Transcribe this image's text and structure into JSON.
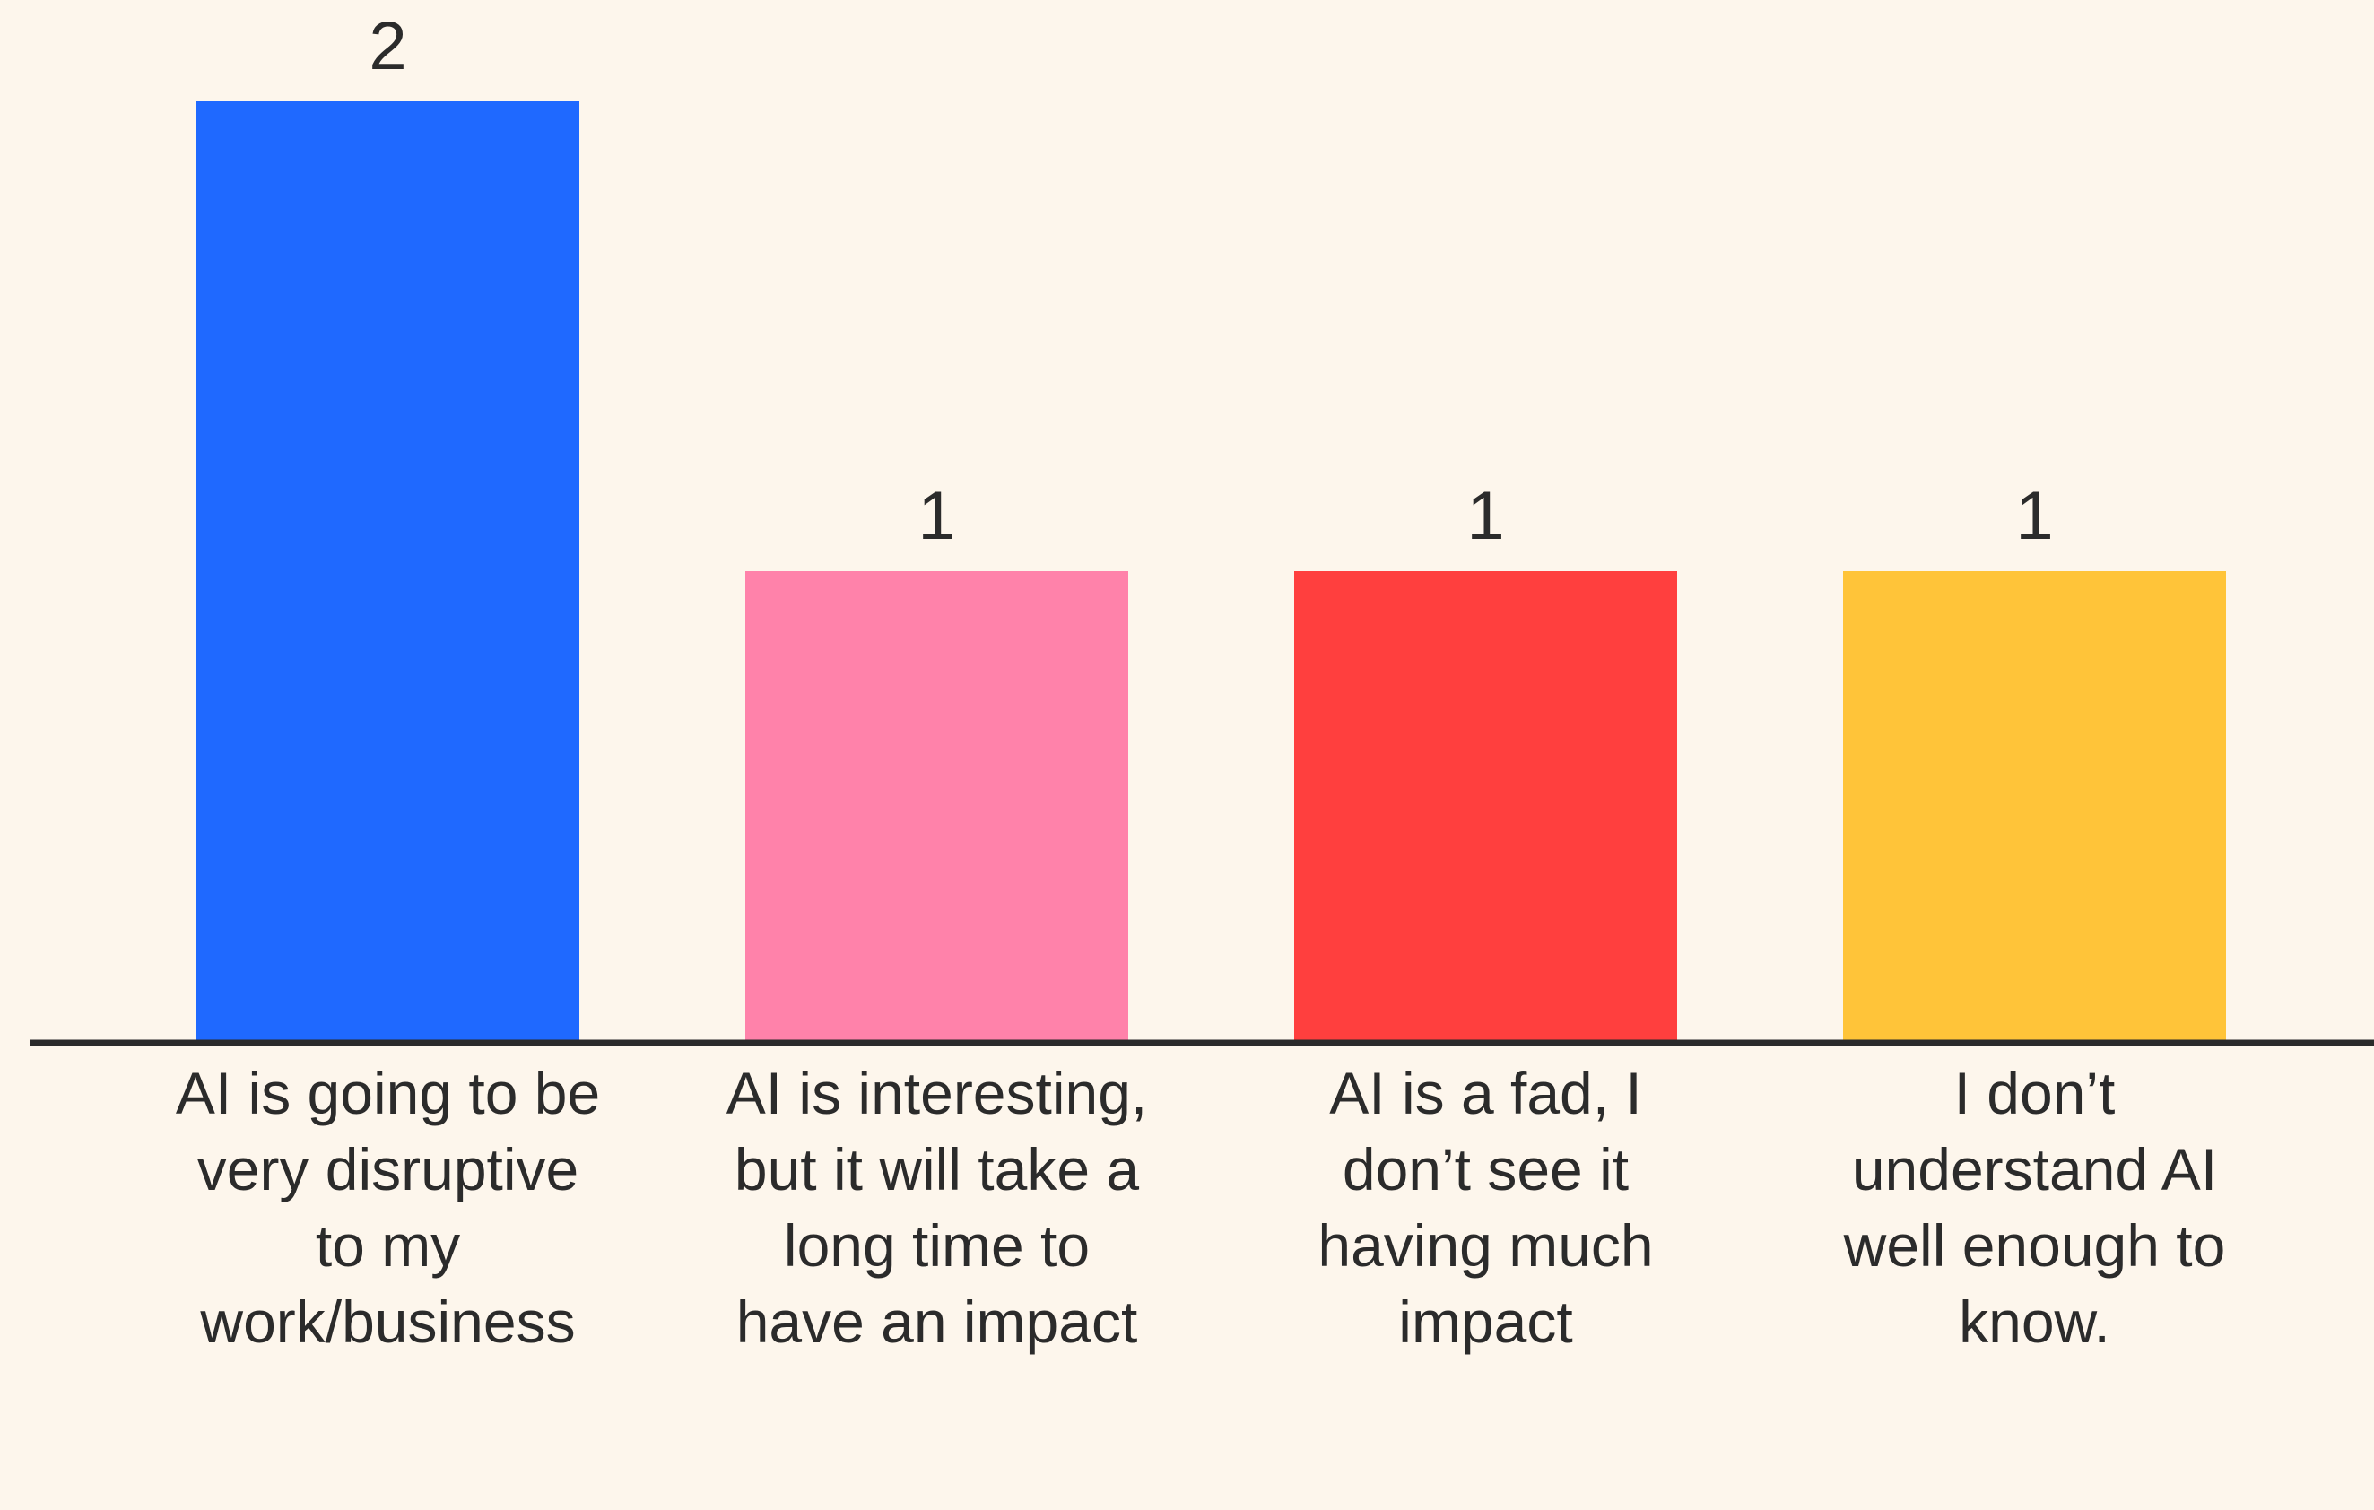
{
  "chart_data": {
    "type": "bar",
    "categories": [
      "AI is going to be very disruptive to my work/business",
      "AI is interesting, but it will take a long time to have an impact",
      "AI is a fad, I don’t see it having much impact",
      "I don’t understand AI well enough to know."
    ],
    "values": [
      2,
      1,
      1,
      1
    ],
    "colors": [
      "#1f69ff",
      "#ff82aa",
      "#ff3f3e",
      "#ffc439"
    ]
  }
}
